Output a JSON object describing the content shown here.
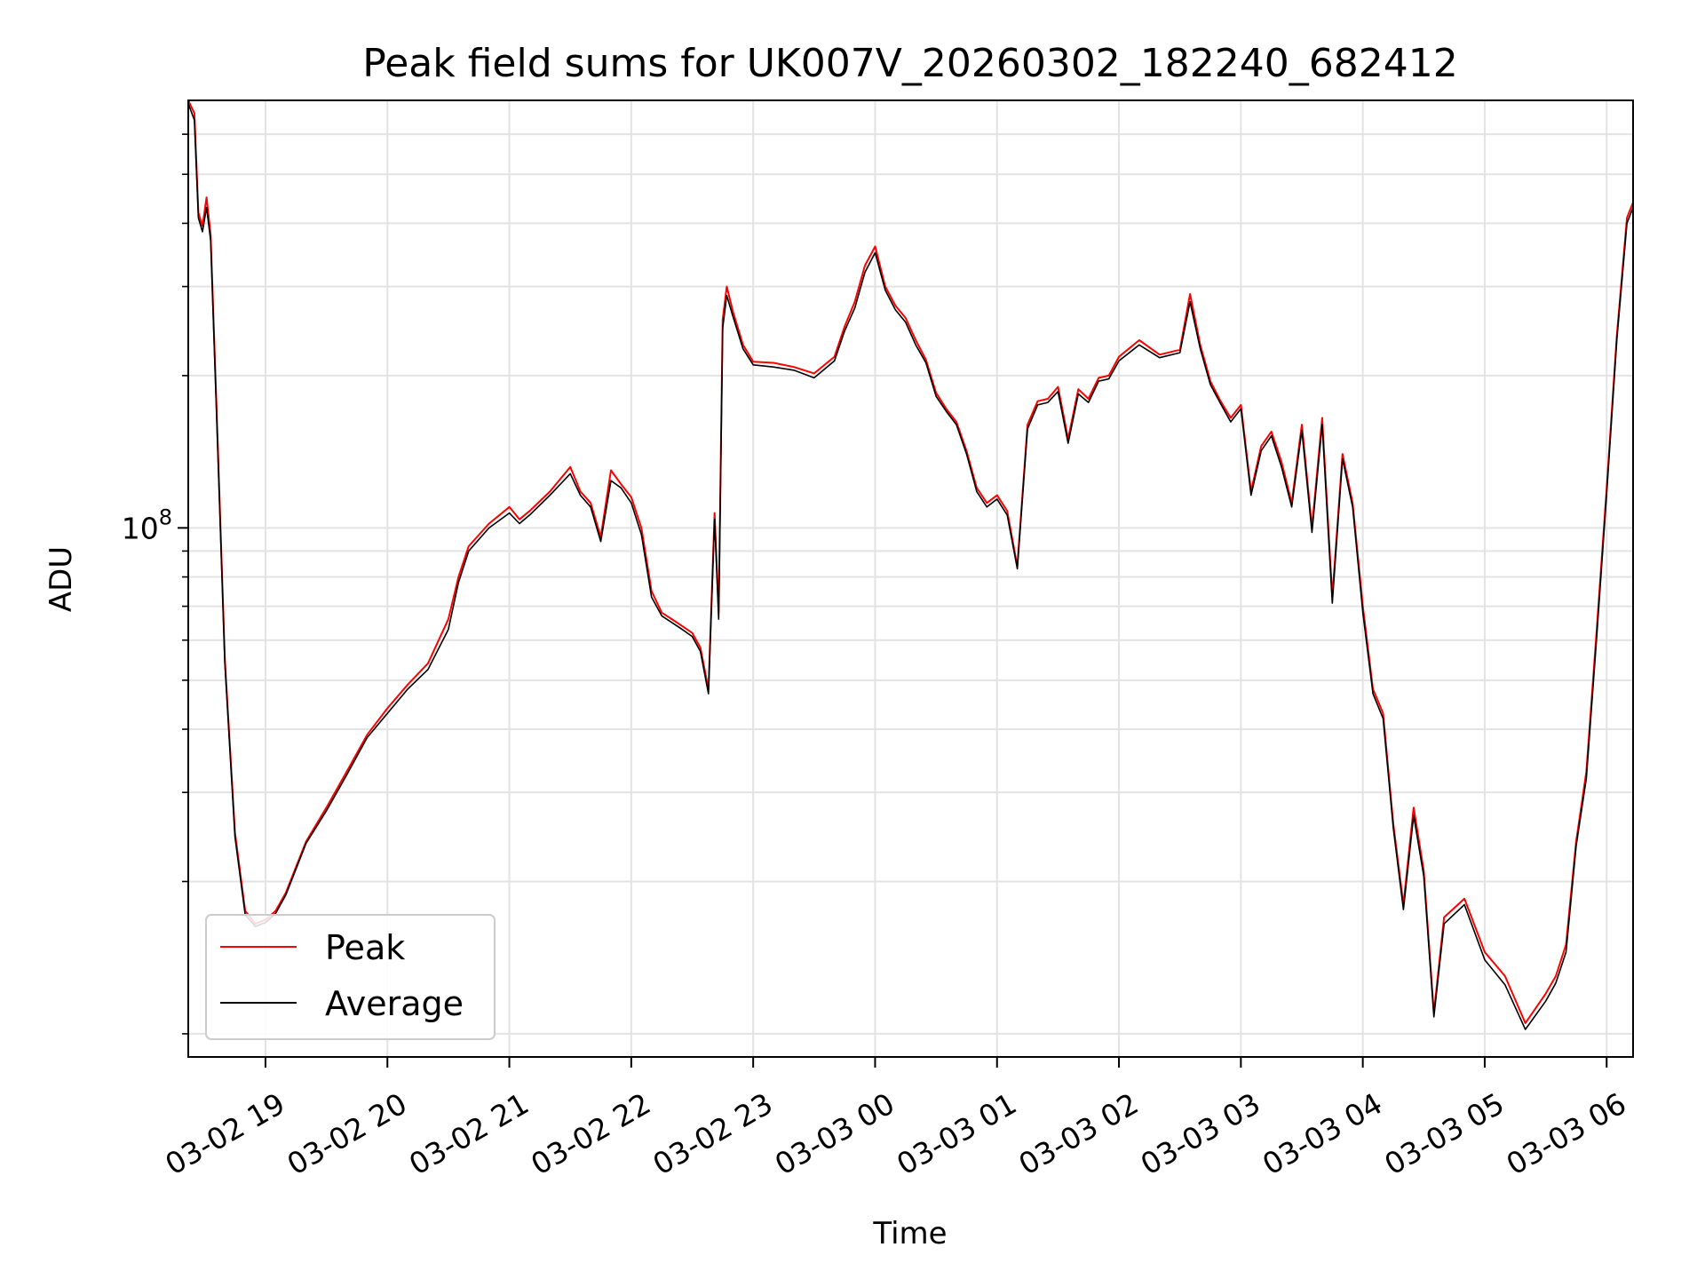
{
  "chart_data": {
    "type": "line",
    "title": "Peak field sums for UK007V_20260302_182240_682412",
    "xlabel": "Time",
    "ylabel": "ADU",
    "y_scale": "log",
    "ylim": [
      9000000,
      700000000
    ],
    "xlim": [
      "2026-03-02 18:22",
      "2026-03-03 06:13"
    ],
    "grid": true,
    "legend_position": "lower-left",
    "x_ticks": [
      {
        "value": "2026-03-02 19:00",
        "label": "03-02 19"
      },
      {
        "value": "2026-03-02 20:00",
        "label": "03-02 20"
      },
      {
        "value": "2026-03-02 21:00",
        "label": "03-02 21"
      },
      {
        "value": "2026-03-02 22:00",
        "label": "03-02 22"
      },
      {
        "value": "2026-03-02 23:00",
        "label": "03-02 23"
      },
      {
        "value": "2026-03-03 00:00",
        "label": "03-03 00"
      },
      {
        "value": "2026-03-03 01:00",
        "label": "03-03 01"
      },
      {
        "value": "2026-03-03 02:00",
        "label": "03-03 02"
      },
      {
        "value": "2026-03-03 03:00",
        "label": "03-03 03"
      },
      {
        "value": "2026-03-03 04:00",
        "label": "03-03 04"
      },
      {
        "value": "2026-03-03 05:00",
        "label": "03-03 05"
      },
      {
        "value": "2026-03-03 06:00",
        "label": "03-03 06"
      }
    ],
    "y_major_ticks": [
      {
        "value": 100000000,
        "label_base": "10",
        "label_exp": "8"
      }
    ],
    "y_minor_ticks": [
      10000000,
      20000000,
      30000000,
      40000000,
      50000000,
      60000000,
      70000000,
      80000000,
      90000000,
      200000000,
      300000000,
      400000000,
      500000000,
      600000000
    ],
    "x": [
      "2026-03-02 18:22",
      "2026-03-02 18:25",
      "2026-03-02 18:27",
      "2026-03-02 18:29",
      "2026-03-02 18:31",
      "2026-03-02 18:33",
      "2026-03-02 18:36",
      "2026-03-02 18:40",
      "2026-03-02 18:45",
      "2026-03-02 18:50",
      "2026-03-02 18:55",
      "2026-03-02 19:00",
      "2026-03-02 19:05",
      "2026-03-02 19:10",
      "2026-03-02 19:20",
      "2026-03-02 19:30",
      "2026-03-02 19:40",
      "2026-03-02 19:50",
      "2026-03-02 20:00",
      "2026-03-02 20:10",
      "2026-03-02 20:20",
      "2026-03-02 20:30",
      "2026-03-02 20:35",
      "2026-03-02 20:40",
      "2026-03-02 20:50",
      "2026-03-02 21:00",
      "2026-03-02 21:05",
      "2026-03-02 21:10",
      "2026-03-02 21:20",
      "2026-03-02 21:30",
      "2026-03-02 21:35",
      "2026-03-02 21:40",
      "2026-03-02 21:45",
      "2026-03-02 21:50",
      "2026-03-02 21:55",
      "2026-03-02 22:00",
      "2026-03-02 22:05",
      "2026-03-02 22:10",
      "2026-03-02 22:15",
      "2026-03-02 22:20",
      "2026-03-02 22:25",
      "2026-03-02 22:30",
      "2026-03-02 22:34",
      "2026-03-02 22:38",
      "2026-03-02 22:41",
      "2026-03-02 22:43",
      "2026-03-02 22:45",
      "2026-03-02 22:47",
      "2026-03-02 22:50",
      "2026-03-02 22:55",
      "2026-03-02 23:00",
      "2026-03-02 23:10",
      "2026-03-02 23:20",
      "2026-03-02 23:30",
      "2026-03-02 23:40",
      "2026-03-02 23:45",
      "2026-03-02 23:50",
      "2026-03-02 23:55",
      "2026-03-03 00:00",
      "2026-03-03 00:05",
      "2026-03-03 00:10",
      "2026-03-03 00:15",
      "2026-03-03 00:20",
      "2026-03-03 00:25",
      "2026-03-03 00:30",
      "2026-03-03 00:35",
      "2026-03-03 00:40",
      "2026-03-03 00:45",
      "2026-03-03 00:50",
      "2026-03-03 00:55",
      "2026-03-03 01:00",
      "2026-03-03 01:05",
      "2026-03-03 01:10",
      "2026-03-03 01:15",
      "2026-03-03 01:20",
      "2026-03-03 01:25",
      "2026-03-03 01:30",
      "2026-03-03 01:35",
      "2026-03-03 01:40",
      "2026-03-03 01:45",
      "2026-03-03 01:50",
      "2026-03-03 01:55",
      "2026-03-03 02:00",
      "2026-03-03 02:10",
      "2026-03-03 02:20",
      "2026-03-03 02:30",
      "2026-03-03 02:35",
      "2026-03-03 02:40",
      "2026-03-03 02:45",
      "2026-03-03 02:50",
      "2026-03-03 02:55",
      "2026-03-03 03:00",
      "2026-03-03 03:05",
      "2026-03-03 03:10",
      "2026-03-03 03:15",
      "2026-03-03 03:20",
      "2026-03-03 03:25",
      "2026-03-03 03:30",
      "2026-03-03 03:35",
      "2026-03-03 03:40",
      "2026-03-03 03:45",
      "2026-03-03 03:50",
      "2026-03-03 03:55",
      "2026-03-03 04:00",
      "2026-03-03 04:05",
      "2026-03-03 04:10",
      "2026-03-03 04:15",
      "2026-03-03 04:20",
      "2026-03-03 04:25",
      "2026-03-03 04:30",
      "2026-03-03 04:35",
      "2026-03-03 04:40",
      "2026-03-03 04:50",
      "2026-03-03 05:00",
      "2026-03-03 05:10",
      "2026-03-03 05:20",
      "2026-03-03 05:30",
      "2026-03-03 05:35",
      "2026-03-03 05:40",
      "2026-03-03 05:45",
      "2026-03-03 05:50",
      "2026-03-03 05:55",
      "2026-03-03 06:00",
      "2026-03-03 06:05",
      "2026-03-03 06:10",
      "2026-03-03 06:13"
    ],
    "series": [
      {
        "name": "Peak",
        "color": "#ff0000",
        "values": [
          700000000,
          660000000,
          420000000,
          395000000,
          450000000,
          380000000,
          170000000,
          55000000,
          25000000,
          17500000,
          16500000,
          16800000,
          17500000,
          19000000,
          24000000,
          28000000,
          33000000,
          39000000,
          44000000,
          49000000,
          54000000,
          66000000,
          80000000,
          92000000,
          102000000,
          110000000,
          104000000,
          108000000,
          118000000,
          132000000,
          118000000,
          112000000,
          96000000,
          130000000,
          122000000,
          115000000,
          100000000,
          75000000,
          68000000,
          66000000,
          64000000,
          62000000,
          58000000,
          48000000,
          107000000,
          68000000,
          258000000,
          300000000,
          268000000,
          230000000,
          213000000,
          212000000,
          208000000,
          202000000,
          218000000,
          250000000,
          280000000,
          330000000,
          360000000,
          300000000,
          275000000,
          260000000,
          235000000,
          215000000,
          185000000,
          172000000,
          162000000,
          142000000,
          120000000,
          112000000,
          116000000,
          108000000,
          84000000,
          160000000,
          178000000,
          180000000,
          190000000,
          150000000,
          188000000,
          180000000,
          198000000,
          200000000,
          218000000,
          235000000,
          220000000,
          225000000,
          290000000,
          230000000,
          195000000,
          178000000,
          165000000,
          175000000,
          118000000,
          145000000,
          155000000,
          135000000,
          112000000,
          160000000,
          100000000,
          165000000,
          73000000,
          140000000,
          112000000,
          70000000,
          48000000,
          43000000,
          26000000,
          18000000,
          28000000,
          21000000,
          11000000,
          17000000,
          18500000,
          14500000,
          13000000,
          10500000,
          12000000,
          13000000,
          15000000,
          24000000,
          33000000,
          62000000,
          120000000,
          240000000,
          410000000,
          440000000
        ]
      },
      {
        "name": "Average",
        "color": "#000000",
        "values": [
          690000000,
          640000000,
          410000000,
          385000000,
          430000000,
          370000000,
          165000000,
          54000000,
          24500000,
          17200000,
          16300000,
          16600000,
          17300000,
          18800000,
          23800000,
          27600000,
          32500000,
          38500000,
          43000000,
          48000000,
          52500000,
          63000000,
          78000000,
          90000000,
          100000000,
          107000000,
          102000000,
          106000000,
          116000000,
          128000000,
          116000000,
          110000000,
          94000000,
          124000000,
          120000000,
          112000000,
          97000000,
          73000000,
          67000000,
          65000000,
          63000000,
          61000000,
          57000000,
          47000000,
          104000000,
          66000000,
          248000000,
          288000000,
          262000000,
          226000000,
          210000000,
          208000000,
          205000000,
          198000000,
          214000000,
          245000000,
          272000000,
          320000000,
          350000000,
          295000000,
          270000000,
          255000000,
          230000000,
          212000000,
          182000000,
          170000000,
          160000000,
          140000000,
          118000000,
          110000000,
          114000000,
          106000000,
          83000000,
          157000000,
          175000000,
          177000000,
          186000000,
          147000000,
          184000000,
          177000000,
          195000000,
          197000000,
          214000000,
          230000000,
          217000000,
          222000000,
          280000000,
          226000000,
          192000000,
          176000000,
          162000000,
          172000000,
          116000000,
          142000000,
          152000000,
          132000000,
          110000000,
          156000000,
          98000000,
          160000000,
          71000000,
          137000000,
          110000000,
          68000000,
          47000000,
          42000000,
          25500000,
          17600000,
          27000000,
          20500000,
          10800000,
          16500000,
          18000000,
          14000000,
          12500000,
          10200000,
          11600000,
          12600000,
          14500000,
          23500000,
          32000000,
          60000000,
          117000000,
          235000000,
          400000000,
          430000000
        ]
      }
    ]
  }
}
